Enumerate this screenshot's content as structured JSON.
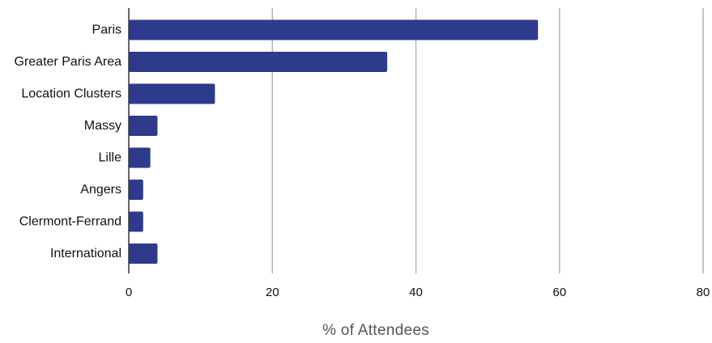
{
  "chart_data": {
    "type": "bar",
    "orientation": "horizontal",
    "categories": [
      "Paris",
      "Greater Paris Area",
      "Location Clusters",
      "Massy",
      "Lille",
      "Angers",
      "Clermont-Ferrand",
      "International"
    ],
    "values": [
      57,
      36,
      12,
      4,
      3,
      2,
      2,
      4
    ],
    "title": "",
    "xlabel": "% of Attendees",
    "ylabel": "",
    "xlim": [
      0,
      80
    ],
    "xticks": [
      0,
      20,
      40,
      60,
      80
    ],
    "tick_labels": [
      "0",
      "20",
      "40",
      "60",
      "80"
    ],
    "grid": "vertical",
    "legend": "none",
    "colors": {
      "bar": "#2e3a8c",
      "grid": "#b3b3b3",
      "axis": "#333333"
    }
  }
}
